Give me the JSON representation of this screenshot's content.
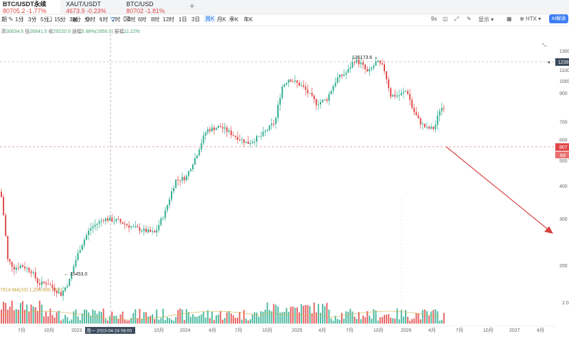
{
  "tabs": [
    {
      "name": "BTC/USDT永续",
      "price": "80705.2",
      "change": "-1.77%",
      "active": true
    },
    {
      "name": "XAUT/USDT",
      "price": "4673.9",
      "change": "-0.23%",
      "active": false
    },
    {
      "name": "BTC/USD",
      "price": "80702",
      "change": "-1.81%",
      "active": false
    }
  ],
  "toolbar": {
    "period_label": "期",
    "timeframes": [
      "1分",
      "3分",
      "5分",
      "15分",
      "30分",
      "分时",
      "1时",
      "2时",
      "4时",
      "6时",
      "8时",
      "12时",
      "1日",
      "3日",
      "周K",
      "月K",
      "季K",
      "年K"
    ],
    "active_timeframe": "周K",
    "icons": [
      "pencil-icon",
      "brush-icon",
      "draw-tools-icon",
      "layers-icon",
      "lock-icon",
      "picture-icon",
      "settings-icon",
      "compass-icon",
      "filter-icon",
      "trash-icon"
    ],
    "right": {
      "interval": "9s",
      "show_label": "显示",
      "exchange": "HTX",
      "ai_label": "AI解读"
    }
  },
  "stats": {
    "h_label": "高",
    "high": "30034.5",
    "l_label": "低",
    "low": "26941.5",
    "c_label": "收",
    "close": "29220.5",
    "chg_label": "涨幅",
    "chg": "5.98%(1650.0)",
    "amp_label": "振幅",
    "amp": "11.22%"
  },
  "volume": {
    "prefix": "7914",
    "ma_label": "MA(10)",
    "ma_value": "1,256,490.3591"
  },
  "chart": {
    "high_annotation": "126173.6",
    "low_annotation": "15453.0",
    "crosshair_date": "周一 2023-04-24 08:00",
    "y_labels": [
      {
        "v": 130000,
        "t": "1300"
      },
      {
        "v": 110000,
        "t": "1100"
      },
      {
        "v": 100000,
        "t": "1000"
      },
      {
        "v": 90000,
        "t": "900"
      },
      {
        "v": 70000,
        "t": "700"
      },
      {
        "v": 60000,
        "t": "600"
      },
      {
        "v": 50000,
        "t": "500"
      },
      {
        "v": 40000,
        "t": "400"
      },
      {
        "v": 30000,
        "t": "300"
      },
      {
        "v": 20000,
        "t": "200"
      }
    ],
    "price_badge_top": "1239",
    "price_badge_current": "807",
    "price_badge_time": "6d",
    "volume_axis_label": "2.0",
    "x_labels": [
      "7月",
      "10月",
      "2023",
      "",
      "10月",
      "2024",
      "4月",
      "7月",
      "10月",
      "2025",
      "4月",
      "7月",
      "10月",
      "2026",
      "4月",
      "7月",
      "10月",
      "2027",
      "4月"
    ],
    "colors": {
      "up": "#2fae8f",
      "down": "#e04848",
      "arrow": "#d84040"
    }
  }
}
